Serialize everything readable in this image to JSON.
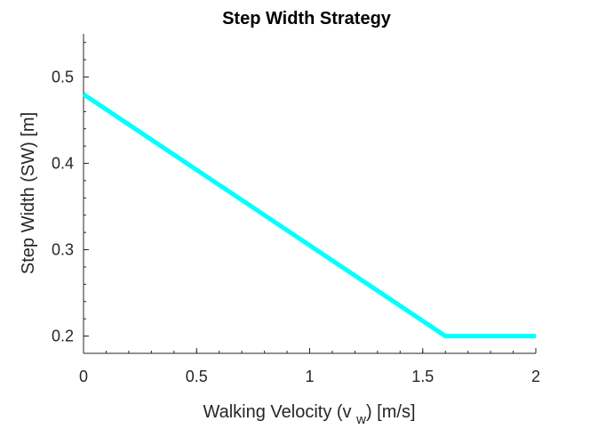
{
  "chart_data": {
    "type": "line",
    "title": "Step Width Strategy",
    "xlabel": "Walking Velocity (v_w) [m/s]",
    "xlabel_parts": {
      "before": "Walking Velocity (v ",
      "subscript": "w",
      "after": ") [m/s]"
    },
    "ylabel": "Step Width (SW) [m]",
    "xlim": [
      0,
      2
    ],
    "ylim": [
      0.18,
      0.55
    ],
    "xticks": [
      0,
      0.5,
      1,
      1.5,
      2
    ],
    "xtick_labels": [
      "0",
      "0.5",
      "1",
      "1.5",
      "2"
    ],
    "yticks": [
      0.2,
      0.3,
      0.4,
      0.5
    ],
    "ytick_labels": [
      "0.2",
      "0.3",
      "0.4",
      "0.5"
    ],
    "x_minor_step": 0.1,
    "y_minor_step": 0.02,
    "grid": false,
    "box": false,
    "series": [
      {
        "color": "#00ffff",
        "x": [
          0,
          1.6,
          2
        ],
        "y": [
          0.48,
          0.2,
          0.2
        ]
      }
    ]
  }
}
